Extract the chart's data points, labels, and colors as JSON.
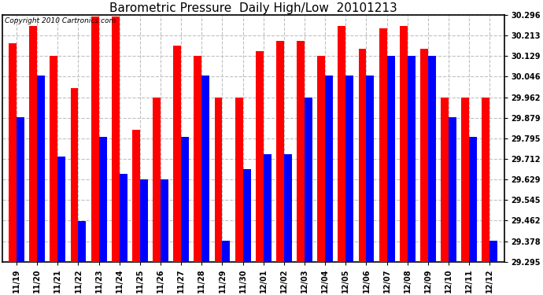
{
  "title": "Barometric Pressure  Daily High/Low  20101213",
  "copyright": "Copyright 2010 Cartronics.com",
  "dates": [
    "11/19",
    "11/20",
    "11/21",
    "11/22",
    "11/23",
    "11/24",
    "11/25",
    "11/26",
    "11/27",
    "11/28",
    "11/29",
    "11/30",
    "12/01",
    "12/02",
    "12/03",
    "12/04",
    "12/05",
    "12/06",
    "12/07",
    "12/08",
    "12/09",
    "12/10",
    "12/11",
    "12/12"
  ],
  "highs": [
    30.18,
    30.25,
    30.13,
    30.0,
    30.29,
    30.29,
    29.83,
    29.96,
    30.17,
    30.13,
    29.96,
    29.96,
    30.15,
    30.19,
    30.19,
    30.13,
    30.25,
    30.16,
    30.24,
    30.25,
    30.16,
    29.96,
    29.96,
    29.96
  ],
  "lows": [
    29.88,
    30.05,
    29.72,
    29.46,
    29.8,
    29.65,
    29.63,
    29.63,
    29.8,
    30.05,
    29.38,
    29.67,
    29.73,
    29.73,
    29.96,
    30.05,
    30.05,
    30.05,
    30.13,
    30.13,
    30.13,
    29.88,
    29.8,
    29.38
  ],
  "high_color": "#ff0000",
  "low_color": "#0000ff",
  "bg_color": "#ffffff",
  "grid_color": "#c0c0c0",
  "yticks": [
    29.295,
    29.378,
    29.462,
    29.545,
    29.629,
    29.712,
    29.795,
    29.879,
    29.962,
    30.046,
    30.129,
    30.213,
    30.296
  ],
  "ymin": 29.295,
  "ymax": 30.296,
  "bar_width": 0.38,
  "title_fontsize": 11,
  "tick_fontsize": 7,
  "copyright_fontsize": 6.5
}
